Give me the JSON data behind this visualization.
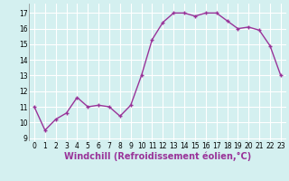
{
  "x": [
    0,
    1,
    2,
    3,
    4,
    5,
    6,
    7,
    8,
    9,
    10,
    11,
    12,
    13,
    14,
    15,
    16,
    17,
    18,
    19,
    20,
    21,
    22,
    23
  ],
  "y": [
    11.0,
    9.5,
    10.2,
    10.6,
    11.6,
    11.0,
    11.1,
    11.0,
    10.4,
    11.1,
    13.0,
    15.3,
    16.4,
    17.0,
    17.0,
    16.8,
    17.0,
    17.0,
    16.5,
    16.0,
    16.1,
    15.9,
    14.9,
    13.0
  ],
  "line_color": "#993399",
  "marker": "+",
  "marker_size": 3,
  "marker_linewidth": 1.0,
  "xlabel": "Windchill (Refroidissement éolien,°C)",
  "xlabel_fontsize": 7,
  "bg_color": "#d4f0f0",
  "grid_color": "#ffffff",
  "xlim": [
    -0.5,
    23.5
  ],
  "ylim": [
    8.8,
    17.6
  ],
  "yticks": [
    9,
    10,
    11,
    12,
    13,
    14,
    15,
    16,
    17
  ],
  "xticks": [
    0,
    1,
    2,
    3,
    4,
    5,
    6,
    7,
    8,
    9,
    10,
    11,
    12,
    13,
    14,
    15,
    16,
    17,
    18,
    19,
    20,
    21,
    22,
    23
  ],
  "tick_fontsize": 5.5,
  "linewidth": 1.0
}
